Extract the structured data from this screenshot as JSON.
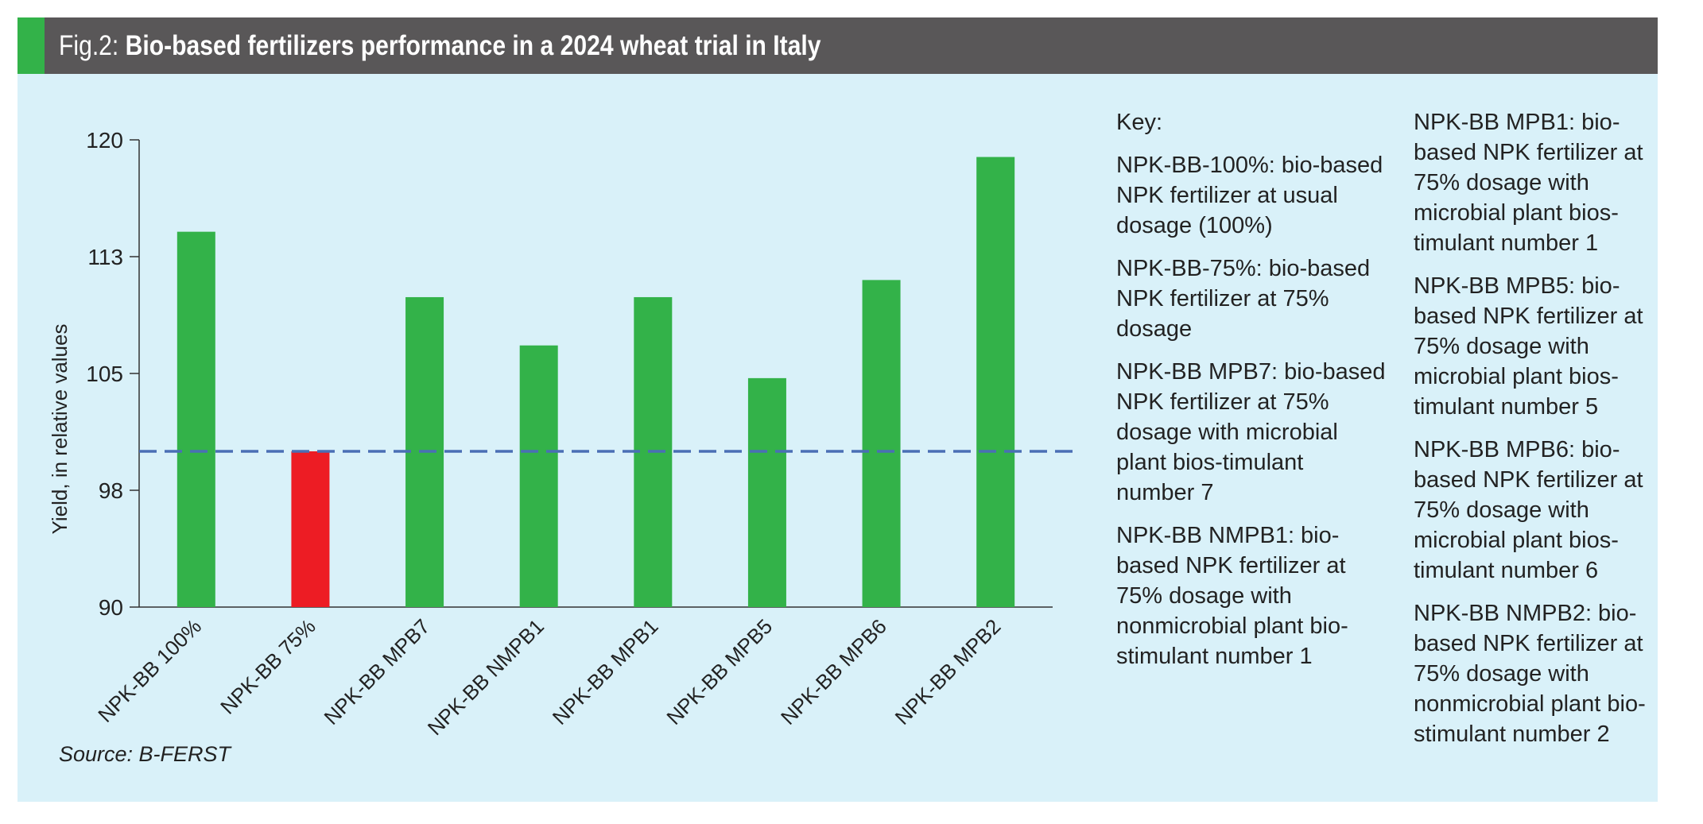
{
  "header": {
    "fig_label": "Fig.2:",
    "title": "Bio-based fertilizers performance in a 2024 wheat trial in Italy"
  },
  "colors": {
    "header_bg": "#595758",
    "header_accent": "#33b249",
    "panel_bg": "#d9f1f9",
    "bar_green": "#33b249",
    "bar_red": "#ed1c24",
    "reference_line": "#4a6fb5"
  },
  "chart_data": {
    "type": "bar",
    "title": "Bio-based fertilizers performance in a 2024 wheat trial in Italy",
    "xlabel": "",
    "ylabel": "Yield, in relative values",
    "ylim": [
      90,
      120
    ],
    "yticks": [
      {
        "value": 90,
        "label": "90"
      },
      {
        "value": 97.5,
        "label": "98"
      },
      {
        "value": 105,
        "label": "105"
      },
      {
        "value": 112.5,
        "label": "113"
      },
      {
        "value": 120,
        "label": "120"
      }
    ],
    "categories": [
      "NPK-BB 100%",
      "NPK-BB 75%",
      "NPK-BB MPB7",
      "NPK-BB NMPB1",
      "NPK-BB MPB1",
      "NPK-BB MPB5",
      "NPK-BB MPB6",
      "NPK-BB MPB2"
    ],
    "values": [
      114.1,
      100.0,
      109.9,
      106.8,
      109.9,
      104.7,
      111.0,
      118.9
    ],
    "bar_colors": [
      "#33b249",
      "#ed1c24",
      "#33b249",
      "#33b249",
      "#33b249",
      "#33b249",
      "#33b249",
      "#33b249"
    ],
    "reference_line": 100,
    "grid": false,
    "legend": "right"
  },
  "source": "Source: B-FERST",
  "key": {
    "heading": "Key:",
    "column1": [
      "NPK-BB-100%: bio-based NPK fertilizer at usual dosage (100%)",
      "NPK-BB-75%: bio-based NPK fertilizer at 75% dosage",
      "NPK-BB MPB7: bio-based NPK fertilizer at 75% dosage with microbial plant bios-timulant number 7",
      "NPK-BB NMPB1: bio-based NPK fertilizer at 75% dosage with nonmicrobial plant bio-stimulant number 1"
    ],
    "column2": [
      "NPK-BB MPB1: bio-based NPK fertilizer at 75% dosage with microbial plant bios-timulant number 1",
      "NPK-BB MPB5: bio-based NPK fertilizer at 75% dosage with microbial plant bios-timulant number 5",
      "NPK-BB MPB6: bio-based NPK fertilizer at 75% dosage with microbial plant bios-timulant number 6",
      "NPK-BB NMPB2: bio-based NPK fertilizer at 75% dosage with nonmicrobial plant bio-stimulant number 2"
    ]
  }
}
